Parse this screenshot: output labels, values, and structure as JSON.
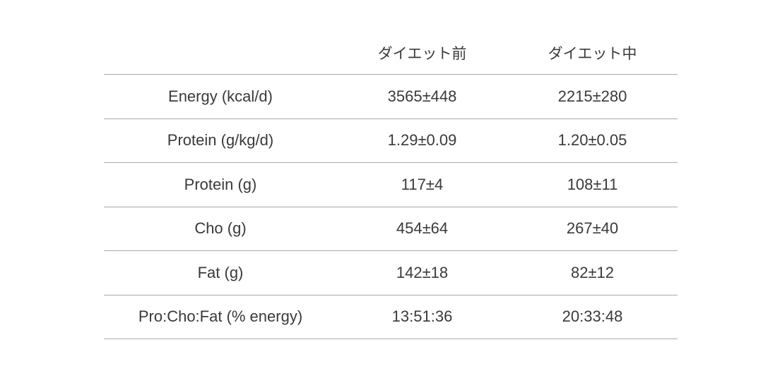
{
  "table": {
    "columns": [
      "",
      "ダイエット前",
      "ダイエット中"
    ],
    "rows": [
      {
        "label": "Energy (kcal/d)",
        "before": "3565±448",
        "during": "2215±280"
      },
      {
        "label": "Protein (g/kg/d)",
        "before": "1.29±0.09",
        "during": "1.20±0.05"
      },
      {
        "label": "Protein (g)",
        "before": "117±4",
        "during": "108±11"
      },
      {
        "label": "Cho (g)",
        "before": "454±64",
        "during": "267±40"
      },
      {
        "label": "Fat (g)",
        "before": "142±18",
        "during": "82±12"
      },
      {
        "label": "Pro:Cho:Fat (% energy)",
        "before": "13:51:36",
        "during": "20:33:48"
      }
    ]
  }
}
